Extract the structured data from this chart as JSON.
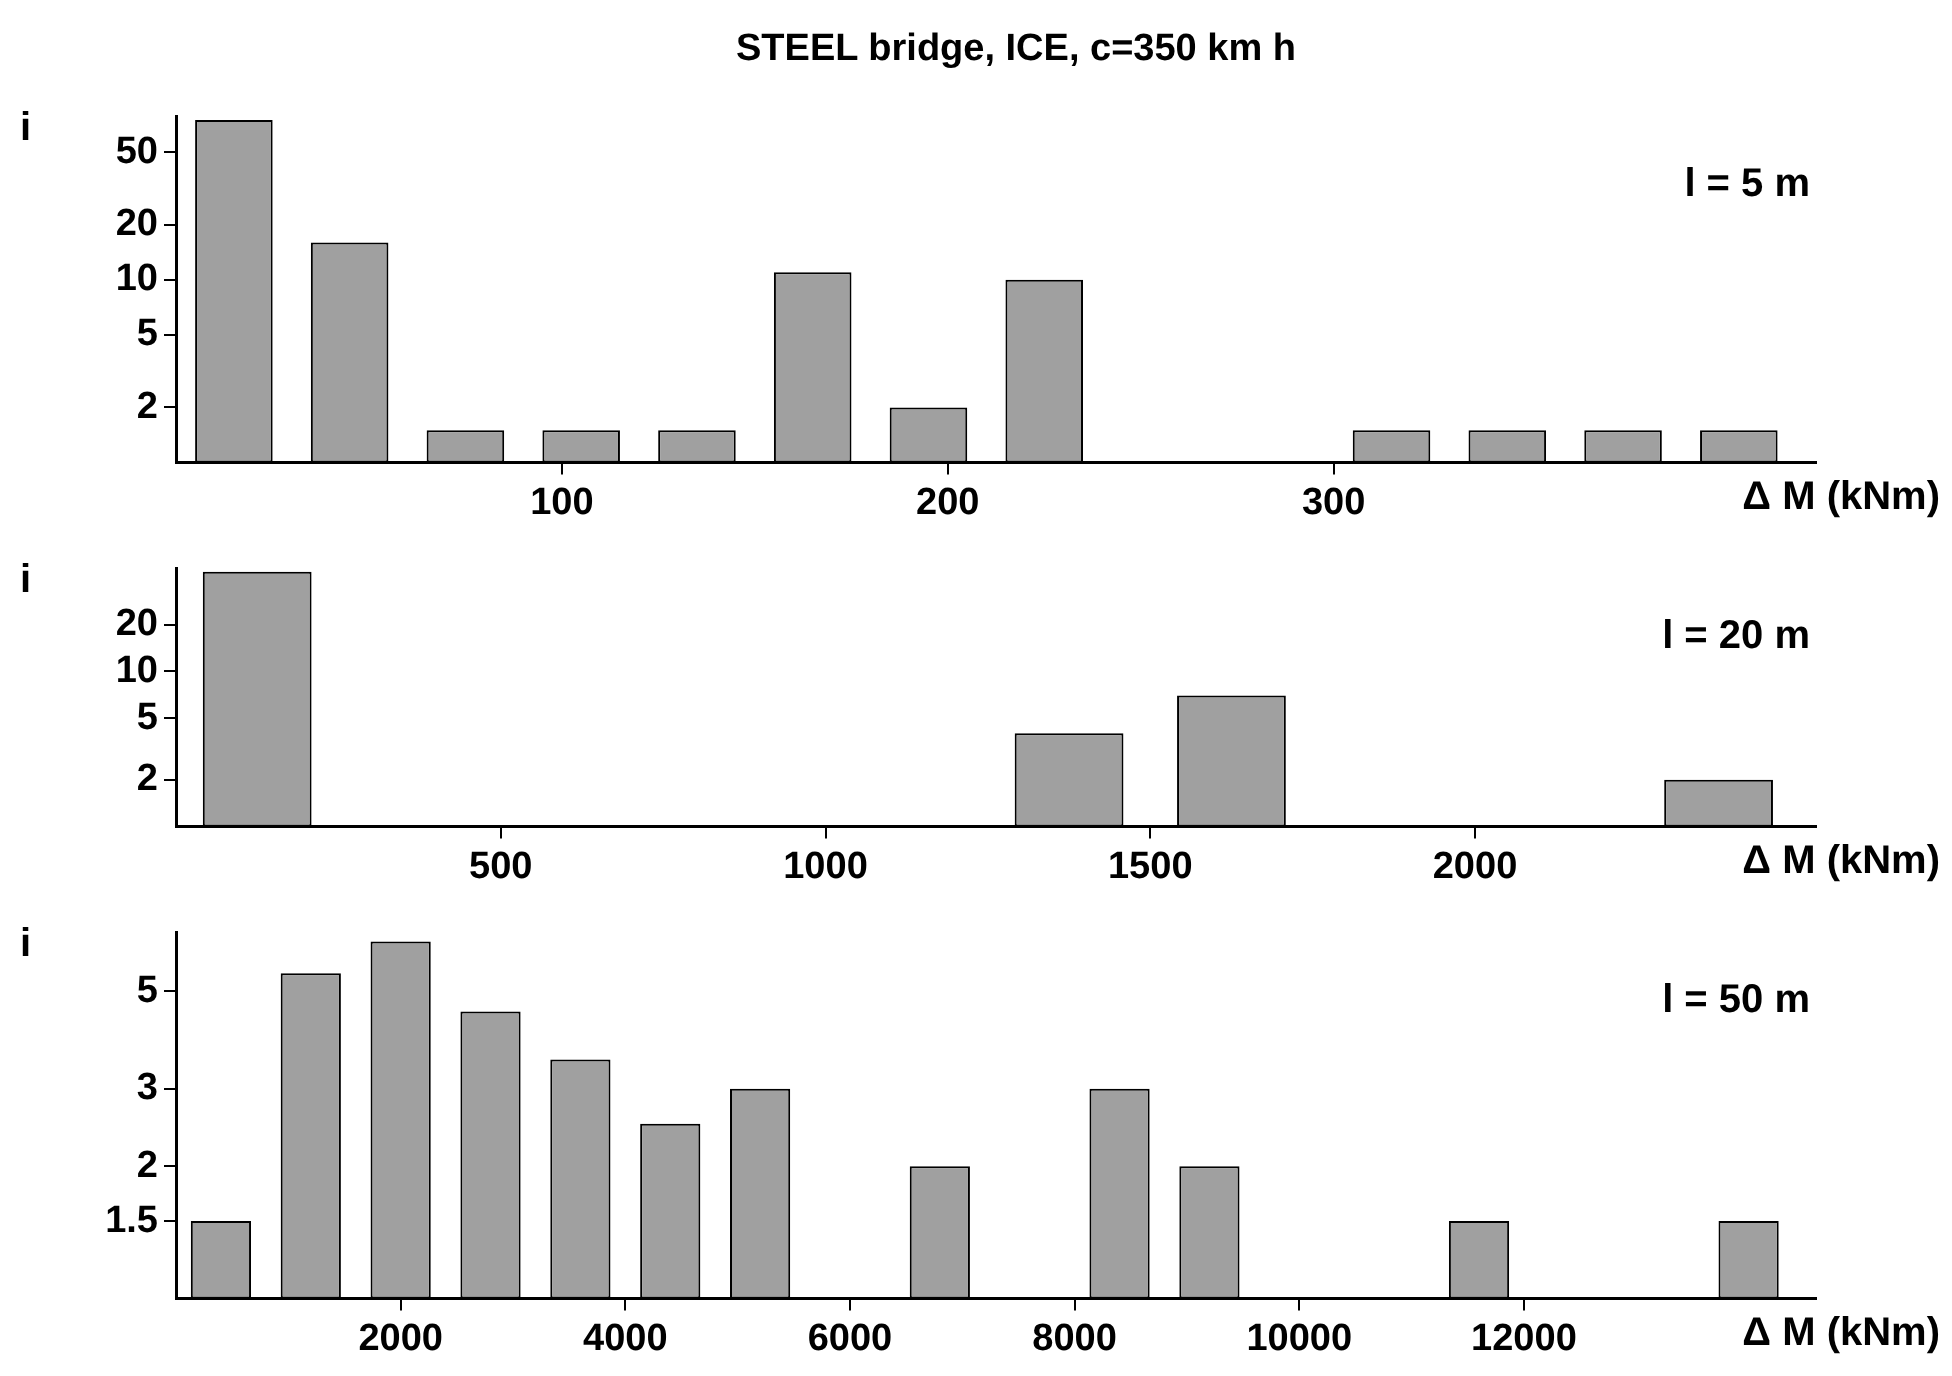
{
  "chart_data": [
    {
      "type": "histogram",
      "title": "STEEL bridge, ICE, c=350 km h",
      "xlabel": "Δ M (kNm)",
      "ylabel": "i",
      "annotations": [
        "l = 5 m"
      ],
      "log": "y",
      "color": "#a0a0a0",
      "bins": [
        0,
        30,
        60,
        90,
        120,
        150,
        180,
        210,
        240,
        270,
        300,
        330,
        360,
        390,
        420
      ],
      "values": [
        75,
        16,
        1.5,
        1.5,
        1.5,
        11,
        2,
        10,
        1,
        1,
        1.5,
        1.5,
        1.5,
        1.5
      ],
      "xlim": [
        0,
        425
      ],
      "xticks": [
        100,
        200,
        300
      ],
      "ylim": [
        1,
        78
      ],
      "yticks": [
        2,
        5,
        10,
        20,
        50
      ]
    },
    {
      "type": "histogram",
      "xlabel": "Δ M (kNm)",
      "ylabel": "i",
      "annotations": [
        "l = 20 m"
      ],
      "log": "y",
      "color": "#a0a0a0",
      "bins": [
        0,
        250,
        500,
        750,
        1000,
        1250,
        1500,
        1750,
        2000,
        2250,
        2500
      ],
      "values": [
        44,
        1,
        1,
        1,
        1,
        4,
        7,
        1,
        1,
        2
      ],
      "xlim": [
        0,
        2525
      ],
      "xticks": [
        500,
        1000,
        1500,
        2000
      ],
      "ylim": [
        1,
        46
      ],
      "yticks": [
        2,
        5,
        10,
        20
      ]
    },
    {
      "type": "histogram",
      "xlabel": "Δ M (kNm)",
      "ylabel": "i",
      "annotations": [
        "l = 50 m"
      ],
      "log": "y",
      "color": "#a0a0a0",
      "bins": [
        0,
        800,
        1600,
        2400,
        3200,
        4000,
        4800,
        5600,
        6400,
        7200,
        8000,
        8800,
        9600,
        10400,
        11200,
        12000,
        12800,
        13600,
        14400
      ],
      "values": [
        1.5,
        5.5,
        6.5,
        4.5,
        3.5,
        2.5,
        3,
        1,
        2,
        1,
        3,
        2,
        1,
        1,
        1.5,
        1,
        1,
        1.5
      ],
      "xlim": [
        0,
        14600
      ],
      "xticks": [
        2000,
        4000,
        6000,
        8000,
        10000,
        12000
      ],
      "ylim": [
        1,
        6.8
      ],
      "yticks": [
        1.5,
        2,
        3,
        5
      ]
    }
  ]
}
